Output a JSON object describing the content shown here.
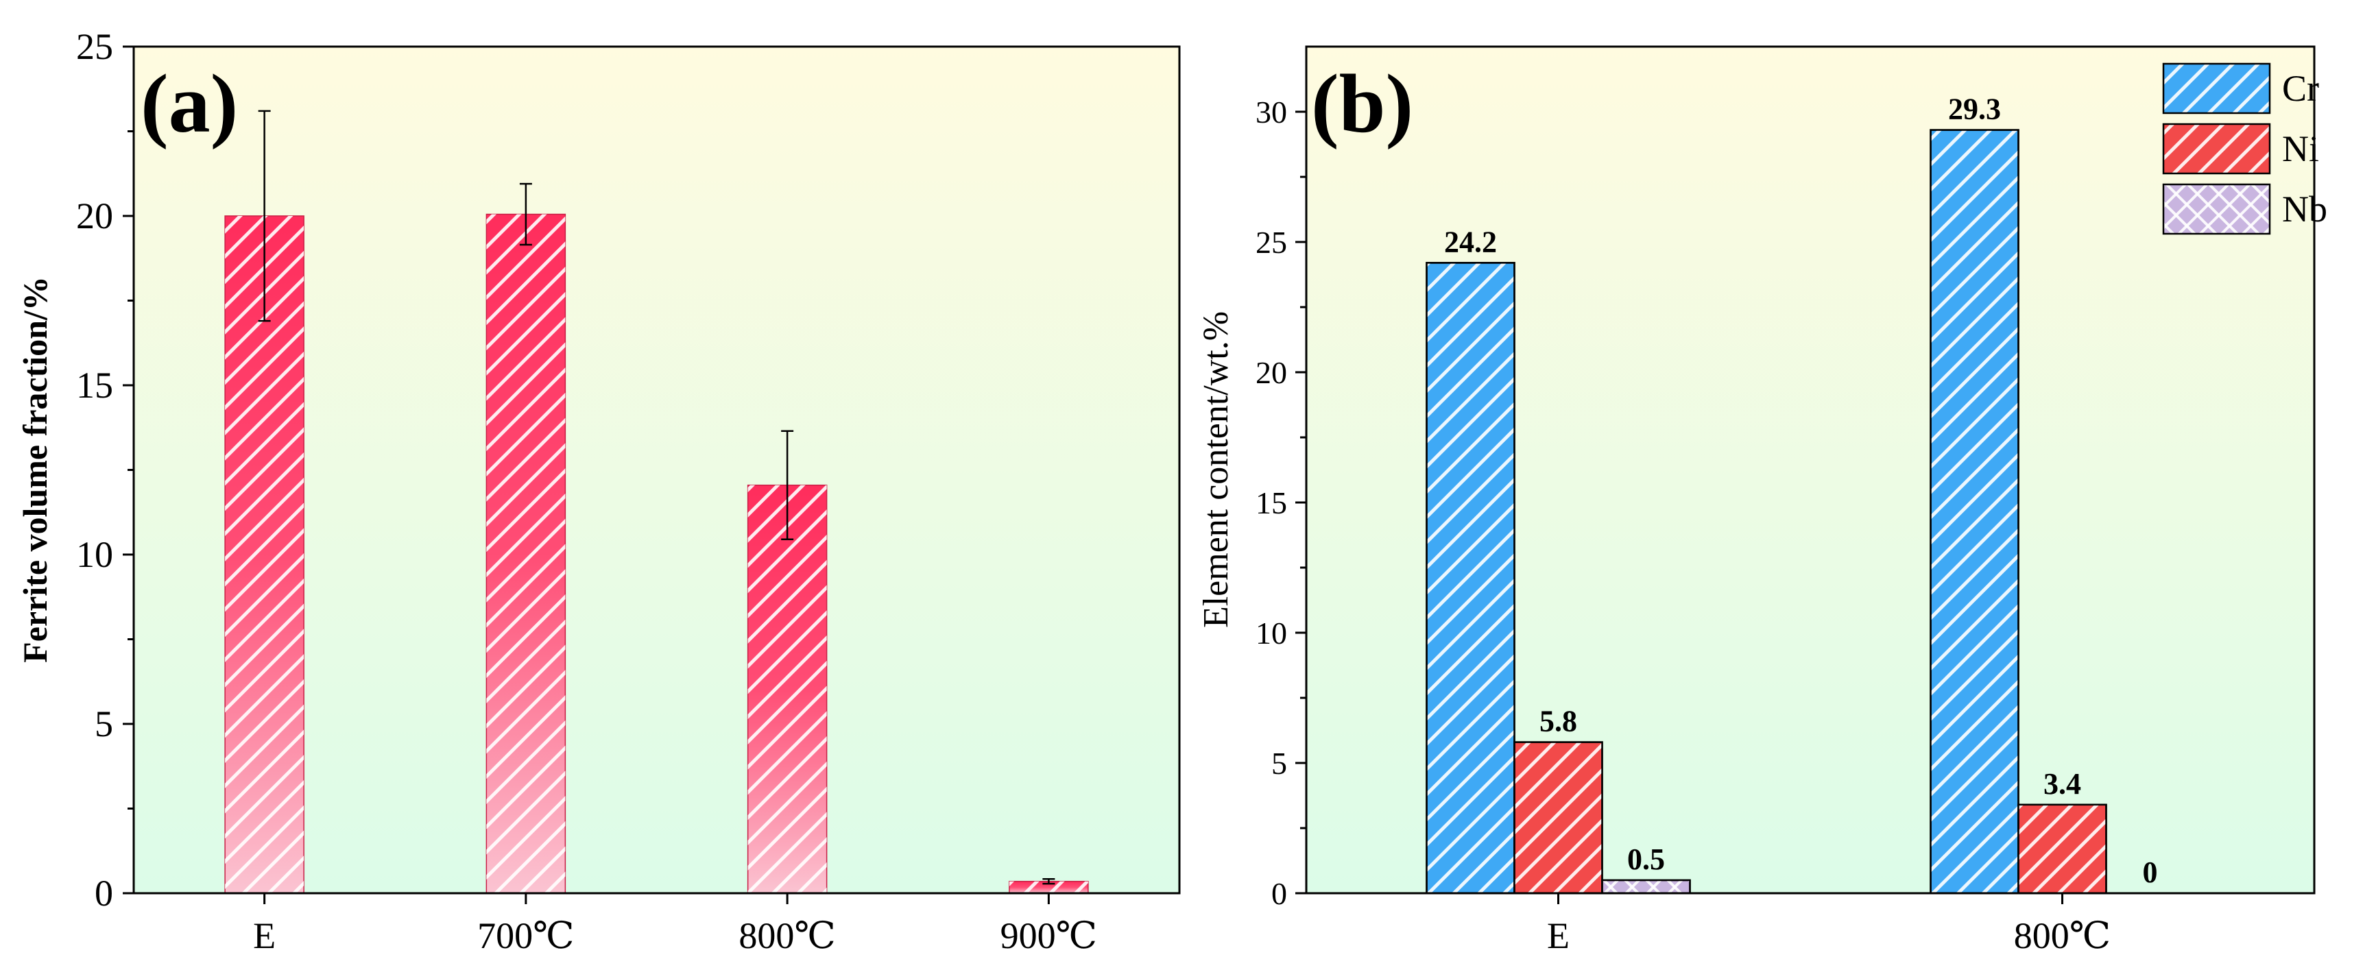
{
  "chart_data": [
    {
      "panel_label": "(a)",
      "type": "bar",
      "categories": [
        "E",
        "700℃",
        "800℃",
        "900℃"
      ],
      "values": [
        20.0,
        20.05,
        12.05,
        0.35
      ],
      "error": [
        3.1,
        0.9,
        1.6,
        0.07
      ],
      "ylabel": "Ferrite volume fraction/%",
      "xlabel": "",
      "ylim": [
        0,
        25
      ],
      "yticks": [
        0,
        5,
        10,
        15,
        20,
        25
      ],
      "tick_labels": [
        "0",
        "5",
        "10",
        "15",
        "20",
        "25"
      ],
      "grid": false,
      "bar_color": "#ff2d5c",
      "background": [
        "#fffbe0",
        "#dcfce8"
      ]
    },
    {
      "panel_label": "(b)",
      "type": "bar",
      "categories": [
        "E",
        "800℃"
      ],
      "series": [
        {
          "name": "Cr",
          "values": [
            24.2,
            29.3
          ],
          "labels": [
            "24.2",
            "29.3"
          ],
          "color": "#3fa9f5",
          "pattern": "hatch"
        },
        {
          "name": "Ni",
          "values": [
            5.8,
            3.4
          ],
          "labels": [
            "5.8",
            "3.4"
          ],
          "color": "#f24a4a",
          "pattern": "hatch"
        },
        {
          "name": "Nb",
          "values": [
            0.5,
            0
          ],
          "labels": [
            "0.5",
            "0"
          ],
          "color": "#c9b5e0",
          "pattern": "crosshatch"
        }
      ],
      "ylabel": "Element content/wt.%",
      "xlabel": "",
      "ylim": [
        0,
        32.5
      ],
      "yticks": [
        0,
        5,
        10,
        15,
        20,
        25,
        30
      ],
      "tick_labels": [
        "0",
        "5",
        "10",
        "15",
        "20",
        "25",
        "30"
      ],
      "legend": "top-right",
      "grid": false,
      "background": [
        "#fffbe0",
        "#dcfce8"
      ]
    }
  ]
}
